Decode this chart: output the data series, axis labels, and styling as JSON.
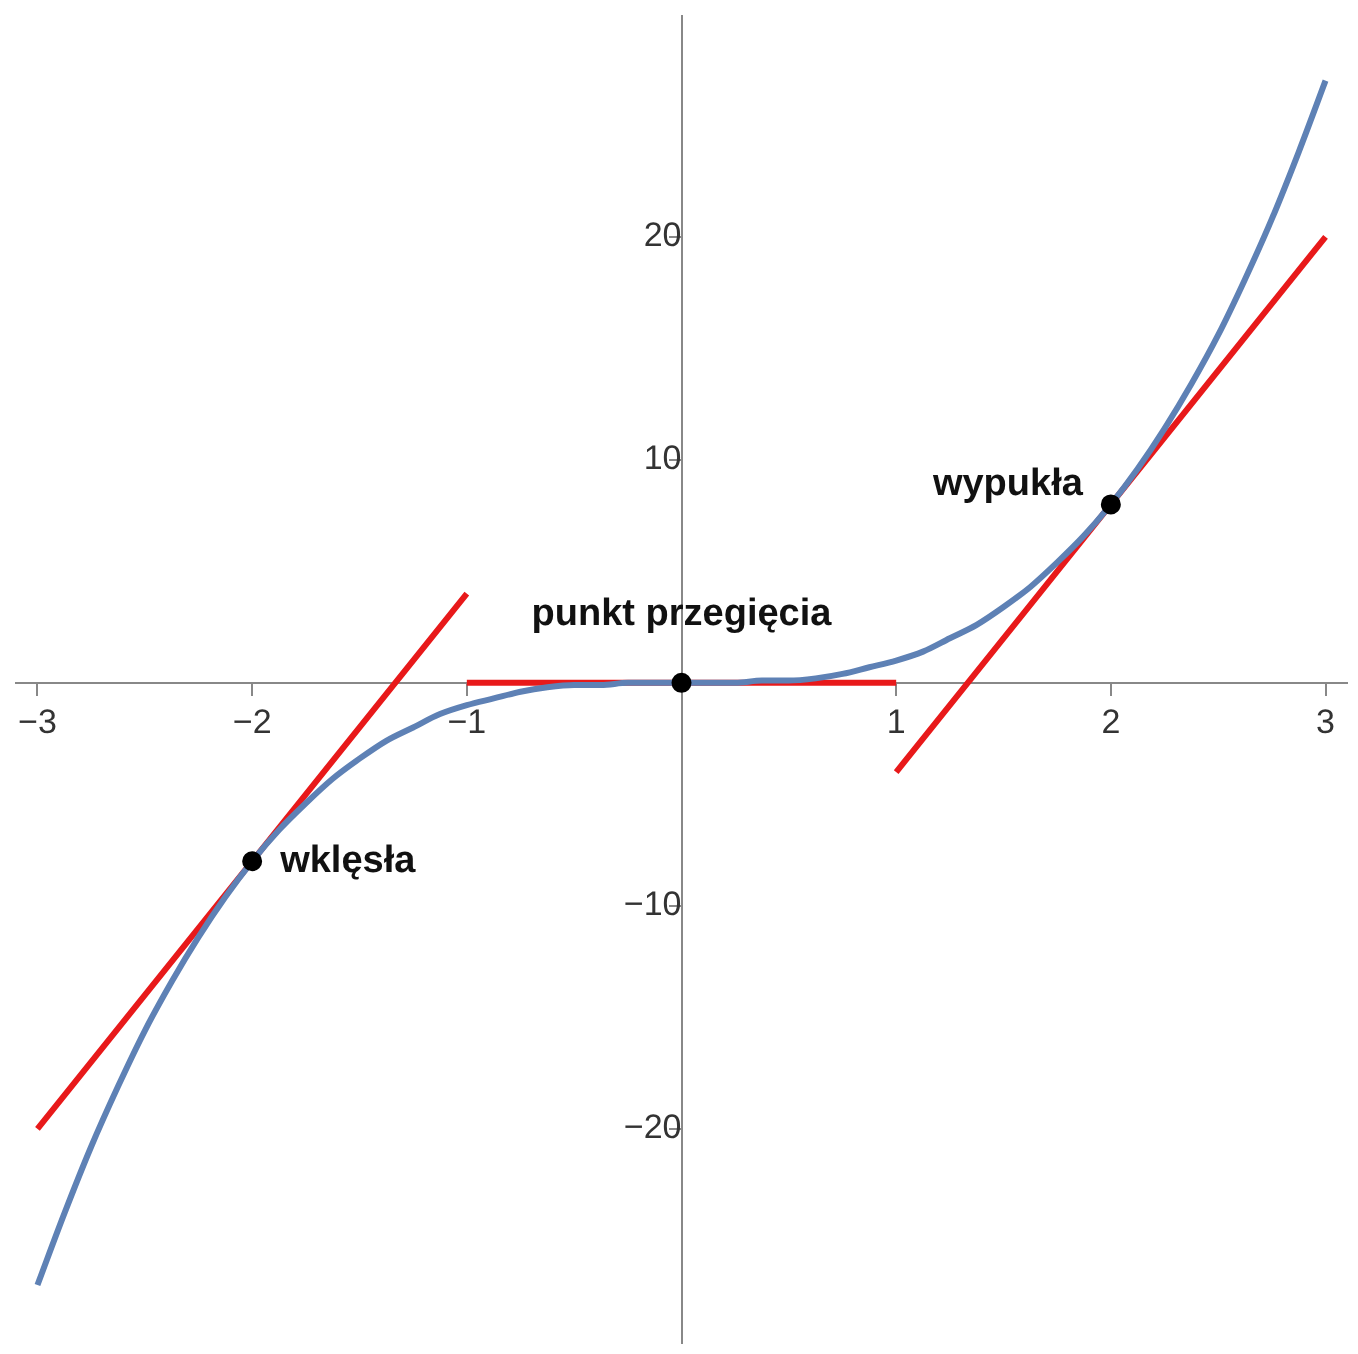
{
  "chart_data": {
    "type": "line",
    "xlim": [
      -3.1,
      3.1
    ],
    "ylim": [
      -29.6,
      29.9
    ],
    "xticks": [
      -3,
      -2,
      -1,
      1,
      2,
      3
    ],
    "yticks": [
      -20,
      -10,
      10,
      20
    ],
    "grid": false,
    "legend": false,
    "marker": "none",
    "line_style": "solid",
    "series": [
      {
        "color": "#5e81b5",
        "x": [
          -3,
          -2.875,
          -2.75,
          -2.625,
          -2.5,
          -2.375,
          -2.25,
          -2.125,
          -2,
          -1.875,
          -1.75,
          -1.625,
          -1.5,
          -1.375,
          -1.25,
          -1.125,
          -1,
          -0.875,
          -0.75,
          -0.625,
          -0.5,
          -0.375,
          -0.25,
          -0.125,
          0,
          0.125,
          0.25,
          0.375,
          0.5,
          0.625,
          0.75,
          0.875,
          1,
          1.125,
          1.25,
          1.375,
          1.5,
          1.625,
          1.75,
          1.875,
          2,
          2.125,
          2.25,
          2.375,
          2.5,
          2.625,
          2.75,
          2.875,
          3
        ],
        "values": [
          -27,
          -23.8,
          -20.8,
          -18.1,
          -15.6,
          -13.4,
          -11.4,
          -9.6,
          -8,
          -6.6,
          -5.4,
          -4.3,
          -3.4,
          -2.6,
          -2,
          -1.4,
          -1,
          -0.7,
          -0.4,
          -0.2,
          -0.1,
          -0.1,
          0,
          0,
          0,
          0,
          0,
          0.1,
          0.1,
          0.2,
          0.4,
          0.7,
          1,
          1.4,
          2,
          2.6,
          3.4,
          4.3,
          5.4,
          6.6,
          8,
          9.6,
          11.4,
          13.4,
          15.6,
          18.1,
          20.8,
          23.8,
          27
        ]
      },
      {
        "color": "#e8191a",
        "x": [
          -3,
          -1
        ],
        "values": [
          -20,
          4
        ]
      },
      {
        "color": "#e8191a",
        "x": [
          -1,
          1
        ],
        "values": [
          0,
          0
        ]
      },
      {
        "color": "#e8191a",
        "x": [
          1,
          3
        ],
        "values": [
          -4,
          20
        ]
      },
      {
        "type": "scatter",
        "color": "#000000",
        "marker": "circle",
        "x": [
          -2,
          0,
          2
        ],
        "values": [
          -8,
          0,
          8
        ]
      }
    ],
    "annotations": [
      {
        "text": "wklęsła",
        "x": -2,
        "y": -8
      },
      {
        "text": "punkt przegięcia",
        "x": 0,
        "y": 0
      },
      {
        "text": "wypukła",
        "x": 2,
        "y": 8
      }
    ]
  }
}
